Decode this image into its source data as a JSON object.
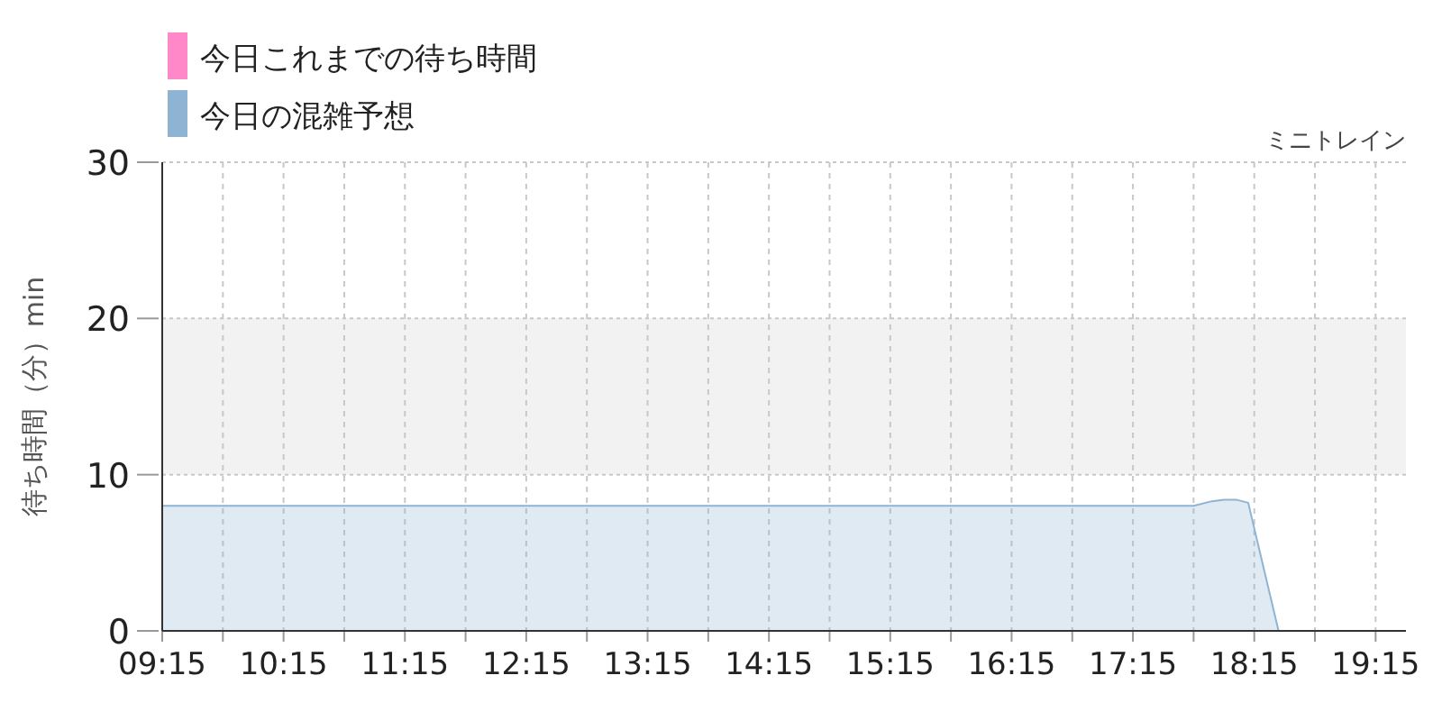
{
  "chart_data": {
    "type": "area",
    "title": "ミニトレイン",
    "ylabel": "待ち時間（分）min",
    "xlim": [
      9.25,
      19.5
    ],
    "ylim": [
      0,
      30
    ],
    "yticks": [
      0,
      10,
      20,
      30
    ],
    "xticks": [
      {
        "value": 9.25,
        "label": "09:15"
      },
      {
        "value": 9.75,
        "label": null
      },
      {
        "value": 10.25,
        "label": "10:15"
      },
      {
        "value": 10.75,
        "label": null
      },
      {
        "value": 11.25,
        "label": "11:15"
      },
      {
        "value": 11.75,
        "label": null
      },
      {
        "value": 12.25,
        "label": "12:15"
      },
      {
        "value": 12.75,
        "label": null
      },
      {
        "value": 13.25,
        "label": "13:15"
      },
      {
        "value": 13.75,
        "label": null
      },
      {
        "value": 14.25,
        "label": "14:15"
      },
      {
        "value": 14.75,
        "label": null
      },
      {
        "value": 15.25,
        "label": "15:15"
      },
      {
        "value": 15.75,
        "label": null
      },
      {
        "value": 16.25,
        "label": "16:15"
      },
      {
        "value": 16.75,
        "label": null
      },
      {
        "value": 17.25,
        "label": "17:15"
      },
      {
        "value": 17.75,
        "label": null
      },
      {
        "value": 18.25,
        "label": "18:15"
      },
      {
        "value": 18.75,
        "label": null
      },
      {
        "value": 19.25,
        "label": "19:15"
      }
    ],
    "grid": true,
    "legend": "top left",
    "bands": [
      {
        "axis": "y",
        "from": 10,
        "to": 20,
        "color": "#f2f2f2"
      }
    ],
    "series": [
      {
        "name": "今日これまでの待ち時間",
        "color": "#ff88c8"
      },
      {
        "name": "今日の混雑予想",
        "color": "#8fb3d3",
        "x": [
          9.25,
          10.25,
          11.25,
          12.25,
          13.25,
          14.25,
          15.25,
          16.25,
          17.25,
          17.75,
          17.9,
          18.0,
          18.1,
          18.2,
          18.45,
          18.75,
          19.25,
          19.5
        ],
        "values": [
          8,
          8,
          8,
          8,
          8,
          8,
          8,
          8,
          8,
          8,
          8.3,
          8.4,
          8.4,
          8.2,
          0,
          0,
          0,
          0
        ]
      }
    ]
  }
}
